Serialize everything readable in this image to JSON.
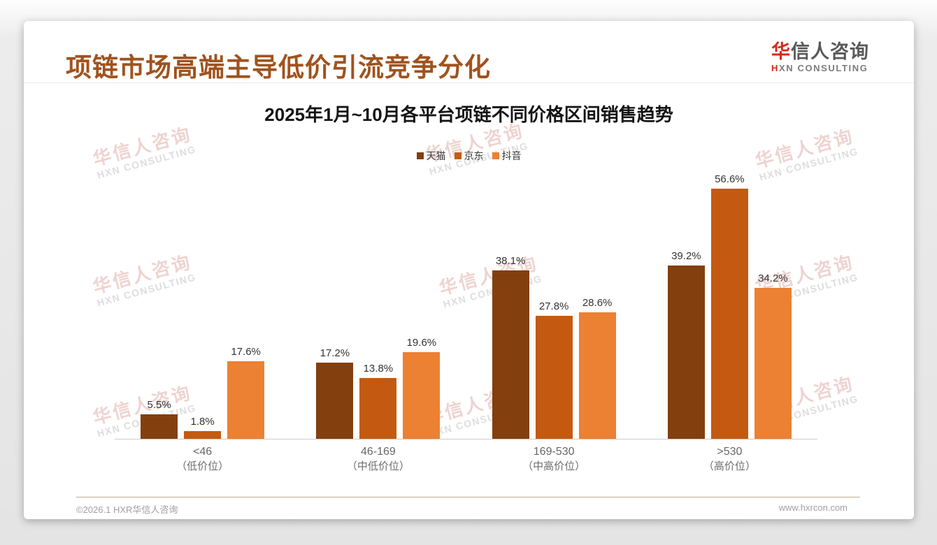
{
  "header": {
    "title": "项链市场高端主导低价引流竞争分化"
  },
  "logo": {
    "cn_first": "华",
    "cn_rest": "信人咨询",
    "en_first": "H",
    "en_rest": "XN CONSULTING"
  },
  "watermark": {
    "line1": "华信人咨询",
    "line2": "HXN CONSULTING"
  },
  "footer": {
    "copyright": "©2026.1 HXR华信人咨询",
    "website": "www.hxrcon.com"
  },
  "colors": {
    "title": "#A0521E",
    "logo_red": "#D6291B",
    "axis_line": "#cccccc",
    "series": [
      "#833F0E",
      "#C45A11",
      "#EC8033"
    ]
  },
  "chart_data": {
    "type": "bar",
    "title": "2025年1月~10月各平台项链不同价格区间销售趋势",
    "categories": [
      "<46",
      "46-169",
      "169-530",
      ">530"
    ],
    "category_sublabels": [
      "（低价位）",
      "（中低价位）",
      "（中高价位）",
      "（高价位）"
    ],
    "series": [
      {
        "name": "天猫",
        "color": "#833F0E",
        "values": [
          5.5,
          17.2,
          38.1,
          39.2
        ]
      },
      {
        "name": "京东",
        "color": "#C45A11",
        "values": [
          1.8,
          13.8,
          27.8,
          56.6
        ]
      },
      {
        "name": "抖音",
        "color": "#EC8033",
        "values": [
          17.6,
          19.6,
          28.6,
          34.2
        ]
      }
    ],
    "unit": "%",
    "ylim": [
      0,
      60
    ],
    "grid": false,
    "legend_position": "top",
    "value_labels": true
  }
}
